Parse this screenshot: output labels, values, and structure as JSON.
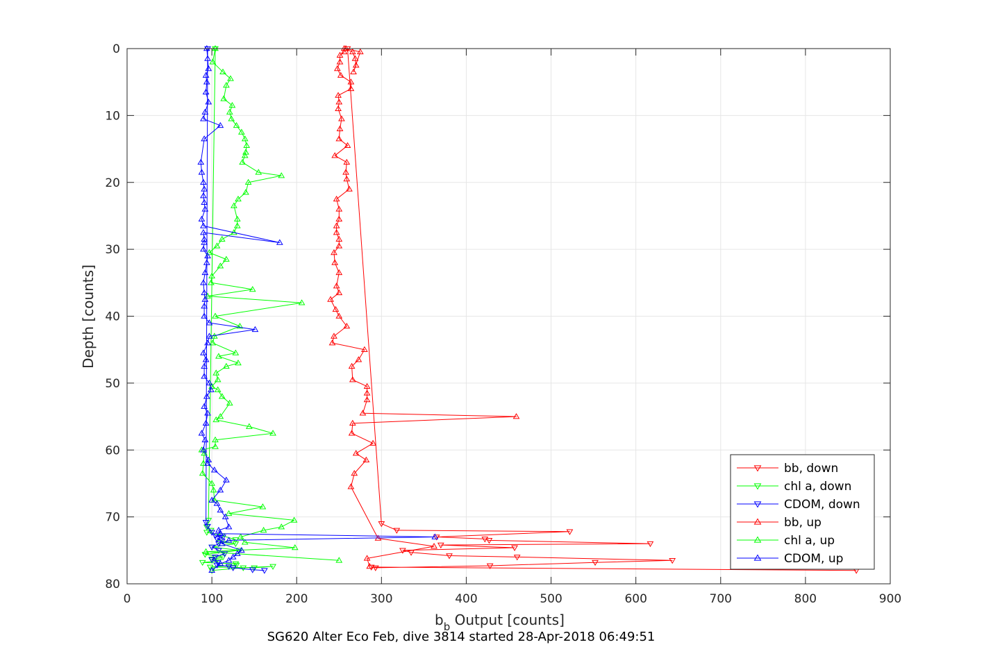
{
  "chart_data": {
    "type": "line",
    "xlabel_main": "b",
    "xlabel_sub": "b",
    "xlabel_rest": " Output [counts]",
    "ylabel": "Depth [counts]",
    "caption": "SG620 Alter Eco Feb, dive 3814 started 28-Apr-2018 06:49:51",
    "xlim": [
      0,
      900
    ],
    "ylim": [
      0,
      80
    ],
    "y_reversed": true,
    "grid": true,
    "legend_position": "lower-right",
    "xticks": [
      0,
      100,
      200,
      300,
      400,
      500,
      600,
      700,
      800,
      900
    ],
    "yticks": [
      0,
      10,
      20,
      30,
      40,
      50,
      60,
      70,
      80
    ],
    "series": [
      {
        "name": "bb, down",
        "color": "#ff0000",
        "marker": "triangle-down",
        "x": [
          260,
          300,
          318,
          522,
          365,
          422,
          427,
          617,
          370,
          457,
          325,
          335,
          380,
          460,
          643,
          552,
          428,
          293,
          288,
          860
        ],
        "y": [
          0,
          71,
          72,
          72.2,
          73,
          73.3,
          73.5,
          74,
          74.2,
          74.6,
          75,
          75.3,
          75.8,
          76,
          76.5,
          76.8,
          77.3,
          77.6,
          77.5,
          78
        ]
      },
      {
        "name": "chl a, down",
        "color": "#00ff00",
        "marker": "triangle-down",
        "x": [
          104,
          96,
          94,
          99,
          94,
          112,
          128,
          109,
          128,
          100,
          132,
          92,
          113,
          100,
          108,
          89,
          128,
          129,
          98,
          150,
          172,
          137,
          100
        ],
        "y": [
          0,
          70.5,
          71.5,
          72,
          72.3,
          72.8,
          73.4,
          73.8,
          74,
          74.5,
          75,
          75.6,
          76,
          76.3,
          76.6,
          76.8,
          77,
          77.2,
          77.5,
          77.6,
          77.4,
          77.6,
          78
        ]
      },
      {
        "name": "CDOM, down",
        "color": "#0000ff",
        "marker": "triangle-down",
        "x": [
          95,
          93,
          95,
          100,
          104,
          113,
          106,
          112,
          108,
          100,
          108,
          115,
          104,
          100,
          107,
          106,
          120,
          125,
          148,
          162
        ],
        "y": [
          0,
          70.8,
          71.4,
          72.3,
          72.8,
          73,
          73.3,
          73.6,
          74,
          74.5,
          75,
          75.5,
          76,
          76.4,
          76.8,
          77.2,
          77.4,
          77.6,
          77.9,
          78
        ]
      },
      {
        "name": "bb, up",
        "color": "#ff0000",
        "marker": "triangle-up",
        "x": [
          286,
          283,
          362,
          296,
          264,
          268,
          282,
          270,
          290,
          265,
          266,
          459,
          278,
          283,
          283,
          283,
          266,
          265,
          273,
          280,
          242,
          244,
          259,
          250,
          246,
          240,
          250,
          247,
          250,
          245,
          244,
          250,
          250,
          247,
          247,
          250,
          250,
          247,
          262,
          259,
          258,
          259,
          245,
          260,
          250,
          251,
          253,
          249,
          250,
          249,
          264,
          264,
          252,
          248,
          251,
          251,
          256,
          256,
          266,
          269,
          270,
          267,
          275,
          258
        ],
        "y": [
          77.4,
          76.2,
          74.4,
          73.2,
          65.5,
          63.5,
          61.5,
          60.5,
          59,
          57.5,
          56,
          55,
          54.5,
          52.5,
          51.5,
          50.5,
          49.5,
          47.5,
          46.5,
          45,
          44,
          43,
          41.5,
          40,
          39,
          37.5,
          36.5,
          35.5,
          33.5,
          32,
          30.5,
          29.5,
          28.5,
          27.5,
          26.5,
          25.5,
          24,
          22.5,
          21,
          19.5,
          18.5,
          17,
          16,
          14.5,
          13.5,
          12,
          10.5,
          9,
          8,
          7,
          6,
          5,
          4,
          3,
          2,
          1,
          0.5,
          0,
          0.5,
          1.5,
          2.5,
          3.5,
          0.5,
          0
        ]
      },
      {
        "name": "chl a, up",
        "color": "#00ff00",
        "marker": "triangle-up",
        "x": [
          250,
          93,
          198,
          139,
          134,
          161,
          182,
          197,
          120,
          160,
          103,
          102,
          100,
          89,
          90,
          91,
          88,
          104,
          104,
          172,
          144,
          105,
          110,
          121,
          112,
          107,
          100,
          107,
          105,
          117,
          131,
          108,
          128,
          101,
          103,
          133,
          104,
          206,
          95,
          148,
          99,
          100,
          110,
          117,
          97,
          106,
          112,
          126,
          130,
          130,
          126,
          131,
          140,
          143,
          182,
          155,
          136,
          139,
          140,
          141,
          139,
          135,
          129,
          123,
          121,
          124,
          114,
          117,
          122,
          113,
          101,
          104
        ],
        "y": [
          76.5,
          75.2,
          74.6,
          73.8,
          73,
          72,
          71.5,
          70.5,
          69.5,
          68.5,
          67.5,
          66,
          65,
          63.5,
          62,
          60.5,
          60,
          59.5,
          58.5,
          57.5,
          56.5,
          55.5,
          55,
          53,
          52,
          51,
          50.5,
          49.5,
          48.5,
          47.5,
          47,
          46,
          45.5,
          44,
          43,
          41.5,
          40,
          38,
          37,
          36,
          35,
          34,
          32.5,
          31.5,
          30.5,
          29.5,
          28.5,
          27.5,
          26.5,
          25.5,
          23.5,
          22.5,
          21.5,
          20,
          19,
          18.5,
          17,
          16,
          15.5,
          14.5,
          13.5,
          12.5,
          11.5,
          10.5,
          9.5,
          8.5,
          7.5,
          5.5,
          4.5,
          3.5,
          2,
          0
        ]
      },
      {
        "name": "CDOM, up",
        "color": "#0000ff",
        "marker": "triangle-up",
        "x": [
          100,
          110,
          120,
          125,
          130,
          135,
          112,
          120,
          363,
          110,
          108,
          120,
          116,
          110,
          106,
          100,
          110,
          117,
          103,
          95,
          96,
          90,
          92,
          88,
          93,
          95,
          91,
          94,
          99,
          97,
          91,
          91,
          93,
          90,
          95,
          97,
          151,
          97,
          91,
          91,
          92,
          91,
          90,
          92,
          94,
          95,
          90,
          91,
          91,
          90,
          180,
          90,
          88,
          92,
          91,
          90,
          91,
          90,
          88,
          87,
          91,
          110,
          90,
          92,
          96,
          93,
          94,
          93,
          96,
          95,
          94
        ],
        "y": [
          78,
          77,
          76.5,
          76,
          75.5,
          75,
          74,
          73.5,
          73,
          72.5,
          72,
          71.5,
          70,
          69,
          68,
          67.5,
          66,
          64.5,
          63,
          62,
          61.5,
          60,
          58.5,
          57.5,
          56,
          54.5,
          53.5,
          52,
          51,
          50,
          49,
          47.5,
          46.5,
          45.5,
          44,
          43,
          42,
          41,
          40,
          38.5,
          37.5,
          36.5,
          35,
          33.5,
          32,
          31,
          30,
          29,
          28.5,
          27.5,
          29,
          26.5,
          25.5,
          24,
          23,
          22,
          21,
          20,
          18.5,
          17,
          13.5,
          11.5,
          10.5,
          9.5,
          8,
          6.5,
          5,
          4,
          3,
          1.5,
          0
        ]
      }
    ]
  }
}
